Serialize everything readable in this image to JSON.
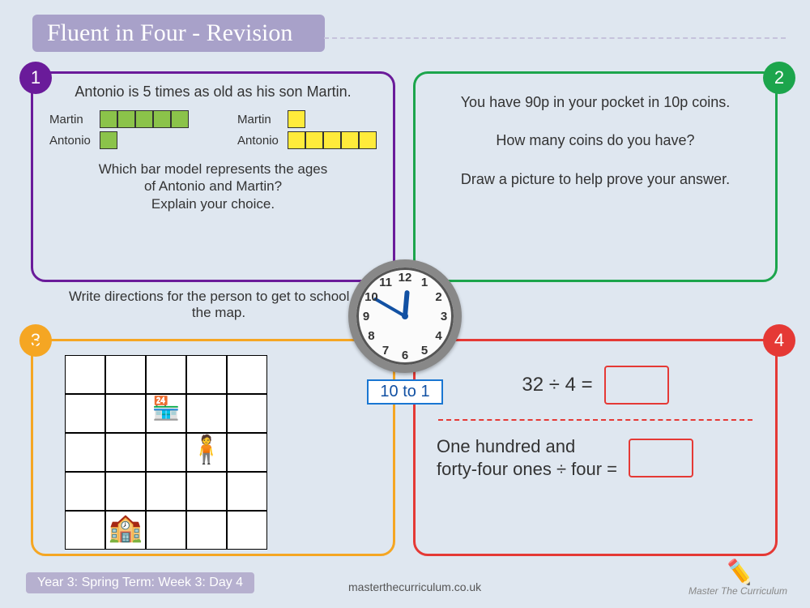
{
  "title": "Fluent in Four - Revision",
  "panels": {
    "p1": {
      "number": "1",
      "border_color": "#6a1b9a",
      "question": "Antonio is 5 times as old as his son Martin.",
      "bar_model_left": {
        "rows": [
          {
            "label": "Martin",
            "cells": 5,
            "color": "#8bc34a"
          },
          {
            "label": "Antonio",
            "cells": 1,
            "color": "#8bc34a"
          }
        ]
      },
      "bar_model_right": {
        "rows": [
          {
            "label": "Martin",
            "cells": 1,
            "color": "#ffeb3b"
          },
          {
            "label": "Antonio",
            "cells": 5,
            "color": "#ffeb3b"
          }
        ]
      },
      "subtext": "Which bar model represents the ages\nof Antonio and Martin?\nExplain your choice."
    },
    "p2": {
      "number": "2",
      "border_color": "#1ca54c",
      "line1": "You have 90p in your pocket in 10p coins.",
      "line2": "How many coins do you have?",
      "line3": "Draw a picture to help prove your answer."
    },
    "p3": {
      "number": "3",
      "border_color": "#f5a623",
      "instruction": "Write directions for the person to get to school on the map.",
      "grid": {
        "cols": 5,
        "rows": 5
      },
      "icons": {
        "shop_cell": 7,
        "person_cell": 13,
        "school_cell": 21
      }
    },
    "p4": {
      "number": "4",
      "border_color": "#e53935",
      "eq1": "32 ÷ 4 =",
      "eq2": "One hundred and\nforty-four ones ÷ four ="
    }
  },
  "clock": {
    "label": "10 to 1",
    "hour_angle_deg": 5,
    "minute_angle_deg": -60,
    "numbers": [
      "12",
      "1",
      "2",
      "3",
      "4",
      "5",
      "6",
      "7",
      "8",
      "9",
      "10",
      "11"
    ]
  },
  "footer": {
    "tag": "Year 3: Spring Term: Week 3: Day 4",
    "url": "masterthecurriculum.co.uk",
    "logo": "Master The Curriculum"
  },
  "colors": {
    "page_bg": "#dfe7f0",
    "title_bg": "#a8a1c9",
    "answer_box_border": "#e53935",
    "clock_accent": "#1251a3"
  }
}
